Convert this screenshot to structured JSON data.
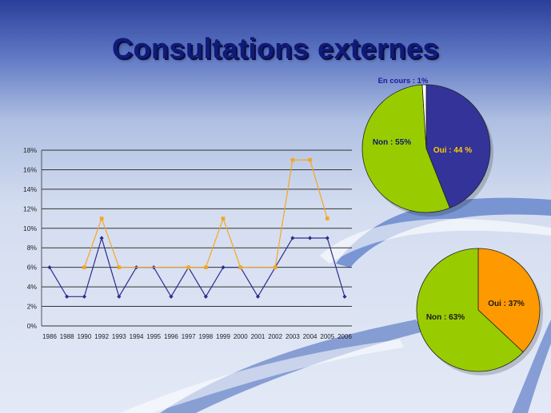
{
  "slide": {
    "title": "Consultations externes"
  },
  "colors": {
    "series_dark": "#2e2d8f",
    "series_orange": "#f5a623",
    "pie_green": "#99cc00",
    "pie_blue": "#333399",
    "pie_orange": "#ff9900",
    "pie_white": "#ffffff"
  },
  "chart_data": [
    {
      "type": "line",
      "title": "",
      "xlabel": "",
      "ylabel": "",
      "categories": [
        "1986",
        "1988",
        "1990",
        "1992",
        "1993",
        "1994",
        "1995",
        "1996",
        "1997",
        "1998",
        "1999",
        "2000",
        "2001",
        "2002",
        "2003",
        "2004",
        "2005",
        "2006"
      ],
      "ylim": [
        0,
        18
      ],
      "yticks": [
        "0%",
        "2%",
        "4%",
        "6%",
        "8%",
        "10%",
        "12%",
        "14%",
        "16%",
        "18%"
      ],
      "grid": true,
      "series": [
        {
          "values": [
            6,
            3,
            3,
            9,
            3,
            6,
            6,
            3,
            6,
            3,
            6,
            6,
            3,
            6,
            9,
            9,
            9,
            3
          ]
        },
        {
          "values": [
            null,
            null,
            6,
            11,
            6,
            null,
            null,
            null,
            6,
            6,
            11,
            6,
            null,
            6,
            17,
            17,
            11,
            null
          ]
        }
      ]
    },
    {
      "type": "pie",
      "slices": [
        {
          "label": "Oui : 44 %",
          "value": 44
        },
        {
          "label": "Non : 55%",
          "value": 55
        },
        {
          "label": "En cours : 1%",
          "value": 1
        }
      ]
    },
    {
      "type": "pie",
      "slices": [
        {
          "label": "Oui : 37%",
          "value": 37
        },
        {
          "label": "Non : 63%",
          "value": 63
        }
      ]
    }
  ]
}
